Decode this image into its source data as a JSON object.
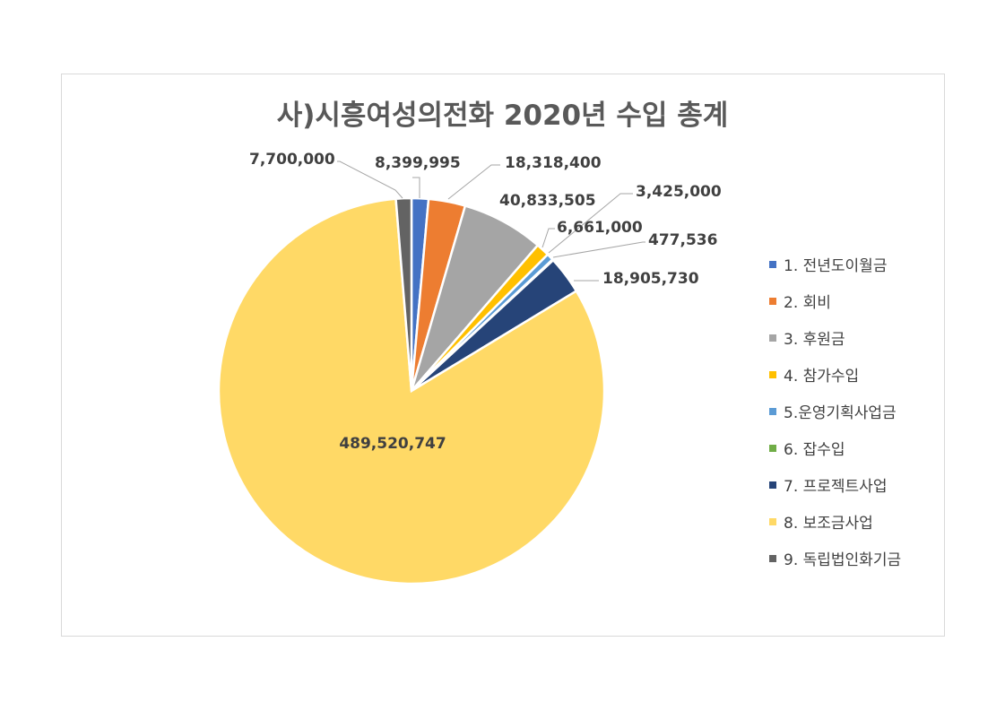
{
  "chart_data": {
    "type": "pie",
    "title": "사)시흥여성의전화 2020년 수입 총계",
    "legend_position": "right",
    "slices": [
      {
        "name": "1. 전년도이월금",
        "value": 8399995,
        "label": "8,399,995",
        "color": "#4472c4"
      },
      {
        "name": "2. 회비",
        "value": 18318400,
        "label": "18,318,400",
        "color": "#ed7d31"
      },
      {
        "name": "3. 후원금",
        "value": 40833505,
        "label": "40,833,505",
        "color": "#a5a5a5"
      },
      {
        "name": "4. 참가수입",
        "value": 6661000,
        "label": "6,661,000",
        "color": "#ffc000"
      },
      {
        "name": "5.운영기획사업금",
        "value": 3425000,
        "label": "3,425,000",
        "color": "#5b9bd5"
      },
      {
        "name": "6. 잡수입",
        "value": 477536,
        "label": "477,536",
        "color": "#70ad47"
      },
      {
        "name": "7. 프로젝트사업",
        "value": 18905730,
        "label": "18,905,730",
        "color": "#264478"
      },
      {
        "name": "8. 보조금사업",
        "value": 489520747,
        "label": "489,520,747",
        "color": "#ffd966"
      },
      {
        "name": "9. 독립법인화기금",
        "value": 7700000,
        "label": "7,700,000",
        "color": "#636363"
      }
    ]
  }
}
